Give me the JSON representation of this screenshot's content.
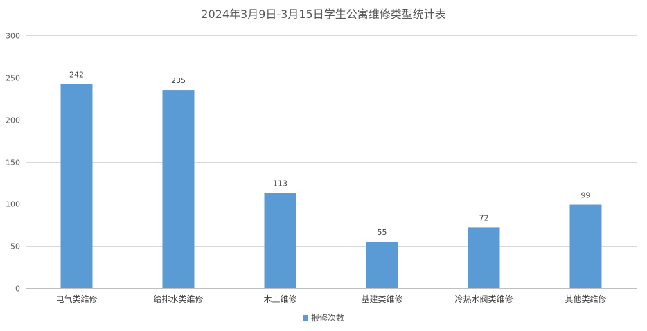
{
  "chart_data": {
    "type": "bar",
    "title": "2024年3月9日-3月15日学生公寓维修类型统计表",
    "categories": [
      "电气类维修",
      "给排水类维修",
      "木工维修",
      "基建类维修",
      "冷热水阀类维修",
      "其他类维修"
    ],
    "series": [
      {
        "name": "报修次数",
        "values": [
          242,
          235,
          113,
          55,
          72,
          99
        ],
        "color": "#5b9bd5"
      }
    ],
    "ylim": [
      0,
      300
    ],
    "yticks": [
      0,
      50,
      100,
      150,
      200,
      250,
      300
    ],
    "grid": true,
    "legend_position": "bottom"
  }
}
